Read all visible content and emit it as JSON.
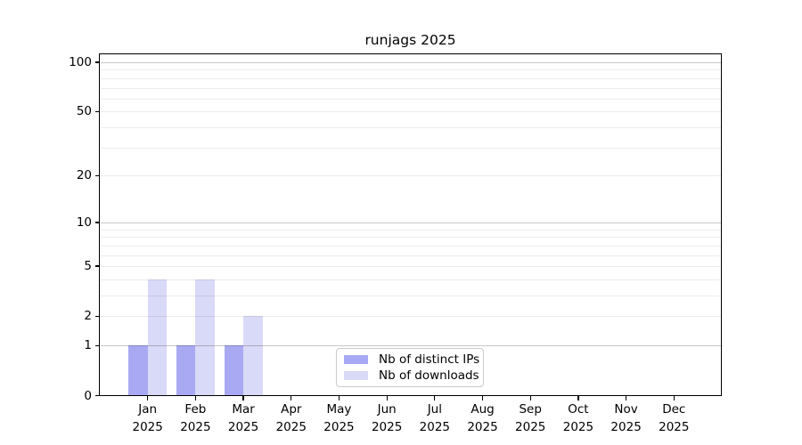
{
  "chart_data": {
    "type": "bar",
    "title": "runjags 2025",
    "categories": [
      "Jan",
      "Feb",
      "Mar",
      "Apr",
      "May",
      "Jun",
      "Jul",
      "Aug",
      "Sep",
      "Oct",
      "Nov",
      "Dec"
    ],
    "year_label": "2025",
    "series": [
      {
        "name": "Nb of distinct IPs",
        "color": "#a9a9f3",
        "values": [
          1,
          1,
          1,
          0,
          0,
          0,
          0,
          0,
          0,
          0,
          0,
          0
        ]
      },
      {
        "name": "Nb of downloads",
        "color": "#d9d9f8",
        "values": [
          4,
          4,
          2,
          0,
          0,
          0,
          0,
          0,
          0,
          0,
          0,
          0
        ]
      }
    ],
    "yticks": [
      0,
      1,
      2,
      5,
      10,
      20,
      50,
      100
    ],
    "major_grid_values": [
      1,
      10,
      100
    ],
    "minor_grid_values": [
      2,
      3,
      4,
      5,
      6,
      7,
      8,
      9,
      20,
      30,
      40,
      50,
      60,
      70,
      80,
      90
    ],
    "yscale": "log1p",
    "ylim": [
      0,
      112
    ],
    "grid": true,
    "legend_position": "lower center",
    "background": "#ffffff",
    "major_grid_color": "rgba(0,0,0,0.22)",
    "minor_grid_color": "rgba(0,0,0,0.075)"
  }
}
